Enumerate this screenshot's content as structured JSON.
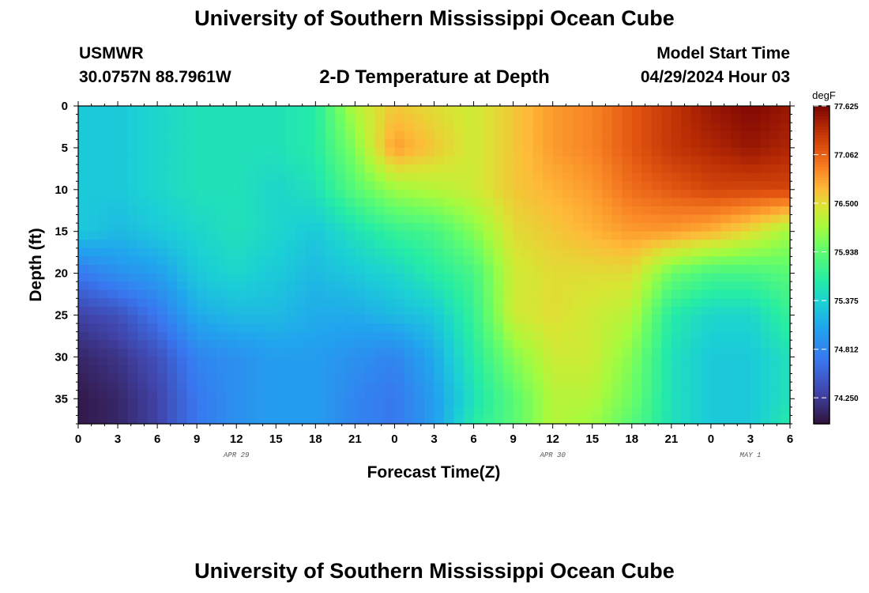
{
  "page": {
    "title": "University of Southern Mississippi Ocean Cube",
    "station": "USMWR",
    "coords": "30.0757N  88.7961W",
    "plot_title": "2-D Temperature at Depth",
    "model_start_label": "Model Start Time",
    "model_start_value": "04/29/2024 Hour 03",
    "bottom_title": "University of Southern Mississippi Ocean Cube"
  },
  "chart_data": {
    "type": "heatmap",
    "title": "2-D Temperature at Depth",
    "xlabel": "Forecast Time(Z)",
    "ylabel": "Depth (ft)",
    "x_tick_labels": [
      "0",
      "3",
      "6",
      "9",
      "12",
      "15",
      "18",
      "21",
      "0",
      "3",
      "6",
      "9",
      "12",
      "15",
      "18",
      "21",
      "0",
      "3",
      "6"
    ],
    "x_range_hours": [
      0,
      54
    ],
    "day_labels": [
      {
        "label": "APR 29",
        "hour": 12
      },
      {
        "label": "APR 30",
        "hour": 36
      },
      {
        "label": "MAY 1",
        "hour": 51
      }
    ],
    "y_ticks": [
      0,
      5,
      10,
      15,
      20,
      25,
      30,
      35
    ],
    "ylim": [
      0,
      38
    ],
    "y_inverted": true,
    "colorbar": {
      "unit": "degF",
      "min": 73.95,
      "max": 77.625,
      "ticks": [
        "77.625",
        "77.062",
        "76.500",
        "75.938",
        "75.375",
        "74.812",
        "74.250"
      ],
      "colormap": "turbo"
    },
    "x_hours": [
      0,
      3,
      6,
      9,
      12,
      15,
      18,
      21,
      24,
      27,
      30,
      33,
      36,
      39,
      42,
      45,
      48,
      51,
      54
    ],
    "depths_ft": [
      0,
      5,
      10,
      15,
      20,
      25,
      30,
      35,
      38
    ],
    "values_degF": [
      [
        75.3,
        75.3,
        75.4,
        75.5,
        75.5,
        75.5,
        75.6,
        76.3,
        76.6,
        76.5,
        76.4,
        76.6,
        76.8,
        76.9,
        77.1,
        77.3,
        77.5,
        77.6,
        77.5
      ],
      [
        75.3,
        75.3,
        75.4,
        75.5,
        75.5,
        75.5,
        75.6,
        76.1,
        76.8,
        76.6,
        76.4,
        76.6,
        76.8,
        76.9,
        77.1,
        77.3,
        77.4,
        77.5,
        77.4
      ],
      [
        75.3,
        75.3,
        75.4,
        75.5,
        75.5,
        75.4,
        75.5,
        75.9,
        76.2,
        76.3,
        76.4,
        76.6,
        76.7,
        76.8,
        77.0,
        77.1,
        77.2,
        77.2,
        77.2
      ],
      [
        75.3,
        75.2,
        75.3,
        75.4,
        75.5,
        75.4,
        75.3,
        75.5,
        75.7,
        75.8,
        76.1,
        76.5,
        76.6,
        76.7,
        76.8,
        76.8,
        76.7,
        76.5,
        76.2
      ],
      [
        74.7,
        74.9,
        75.0,
        75.3,
        75.4,
        75.3,
        75.2,
        75.3,
        75.4,
        75.6,
        75.8,
        76.4,
        76.5,
        76.5,
        76.5,
        76.0,
        75.8,
        75.8,
        75.9
      ],
      [
        74.3,
        74.4,
        74.7,
        75.1,
        75.2,
        75.2,
        75.1,
        75.1,
        75.2,
        75.3,
        75.7,
        76.4,
        76.5,
        76.4,
        76.3,
        75.6,
        75.4,
        75.4,
        75.7
      ],
      [
        74.1,
        74.2,
        74.4,
        74.8,
        74.9,
        75.0,
        75.0,
        74.9,
        74.8,
        75.1,
        75.6,
        76.1,
        76.4,
        76.4,
        76.1,
        75.5,
        75.3,
        75.3,
        75.5
      ],
      [
        74.0,
        74.1,
        74.3,
        74.7,
        74.9,
        75.0,
        75.0,
        74.8,
        74.7,
        75.0,
        75.5,
        75.9,
        76.3,
        76.3,
        76.0,
        75.5,
        75.3,
        75.3,
        75.5
      ],
      [
        74.0,
        74.1,
        74.3,
        74.7,
        74.9,
        75.0,
        75.0,
        74.8,
        74.7,
        75.0,
        75.6,
        75.9,
        76.3,
        76.2,
        75.9,
        75.5,
        75.3,
        75.3,
        75.6
      ]
    ]
  }
}
